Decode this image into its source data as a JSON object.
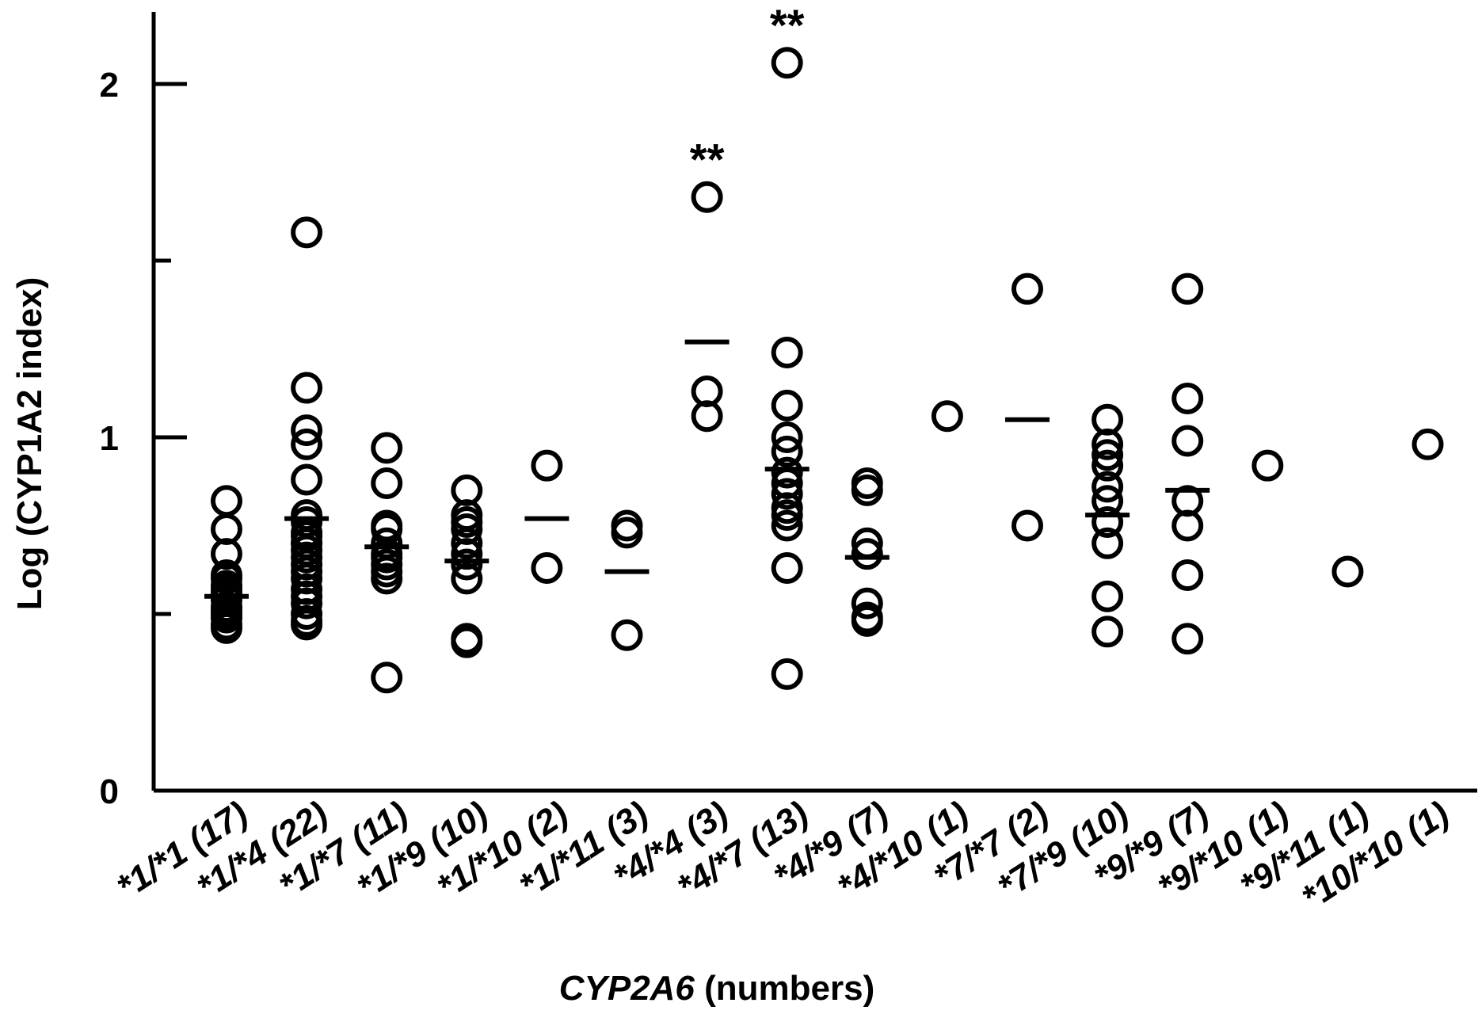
{
  "chart_data": {
    "type": "scatter",
    "ylabel": "Log (CYP1A2 index)",
    "xlabel_italic": "CYP2A6",
    "xlabel_rest": " (numbers)",
    "ylim": [
      0,
      2.2
    ],
    "yticks": [
      0,
      1,
      2
    ],
    "ytick_labels": [
      "0",
      "1",
      "2"
    ],
    "yminor_ticks": [
      0.5,
      1.5
    ],
    "categories": [
      "*1/*1 (17)",
      "*1/*4 (22)",
      "*1/*7 (11)",
      "*1/*9 (10)",
      "*1/*10 (2)",
      "*1/*11 (3)",
      "*4/*4 (3)",
      "*4/*7 (13)",
      "*4/*9 (7)",
      "*4/*10 (1)",
      "*7/*7 (2)",
      "*7/*9 (10)",
      "*9/*9 (7)",
      "*9/*10 (1)",
      "*9/*11 (1)",
      "*10/*10 (1)"
    ],
    "points": [
      [
        0.82,
        0.74,
        0.67,
        0.61,
        0.57,
        0.54,
        0.51,
        0.49,
        0.47,
        0.46,
        0.49,
        0.52,
        0.55,
        0.58,
        0.6,
        0.56,
        0.5
      ],
      [
        1.58,
        1.14,
        1.02,
        0.98,
        0.88,
        0.78,
        0.73,
        0.7,
        0.68,
        0.7,
        0.66,
        0.6,
        0.55,
        0.53,
        0.48,
        0.62,
        0.72,
        0.76,
        0.64,
        0.57,
        0.5,
        0.47
      ],
      [
        0.97,
        0.87,
        0.75,
        0.74,
        0.7,
        0.67,
        0.66,
        0.64,
        0.62,
        0.6,
        0.32
      ],
      [
        0.85,
        0.78,
        0.76,
        0.74,
        0.7,
        0.67,
        0.64,
        0.6,
        0.42,
        0.43
      ],
      [
        0.92,
        0.63
      ],
      [
        0.75,
        0.73,
        0.44
      ],
      [
        1.68,
        1.13,
        1.06
      ],
      [
        2.06,
        1.24,
        1.09,
        1.0,
        0.96,
        0.9,
        0.87,
        0.84,
        0.8,
        0.78,
        0.75,
        0.63,
        0.33
      ],
      [
        0.87,
        0.85,
        0.7,
        0.53,
        0.49,
        0.67,
        0.48
      ],
      [
        1.06
      ],
      [
        1.42,
        0.75
      ],
      [
        1.05,
        0.98,
        0.95,
        0.92,
        0.86,
        0.82,
        0.76,
        0.7,
        0.55,
        0.45
      ],
      [
        1.42,
        1.11,
        0.99,
        0.82,
        0.75,
        0.61,
        0.43
      ],
      [
        0.92
      ],
      [
        0.62
      ],
      [
        0.98
      ]
    ],
    "means": [
      0.55,
      0.77,
      0.69,
      0.65,
      0.77,
      0.62,
      1.27,
      0.91,
      0.66,
      null,
      1.05,
      0.78,
      0.85,
      null,
      null,
      null
    ],
    "significance": [
      "",
      "",
      "",
      "",
      "",
      "",
      "**",
      "**",
      "",
      "",
      "",
      "",
      "",
      "",
      "",
      ""
    ]
  }
}
